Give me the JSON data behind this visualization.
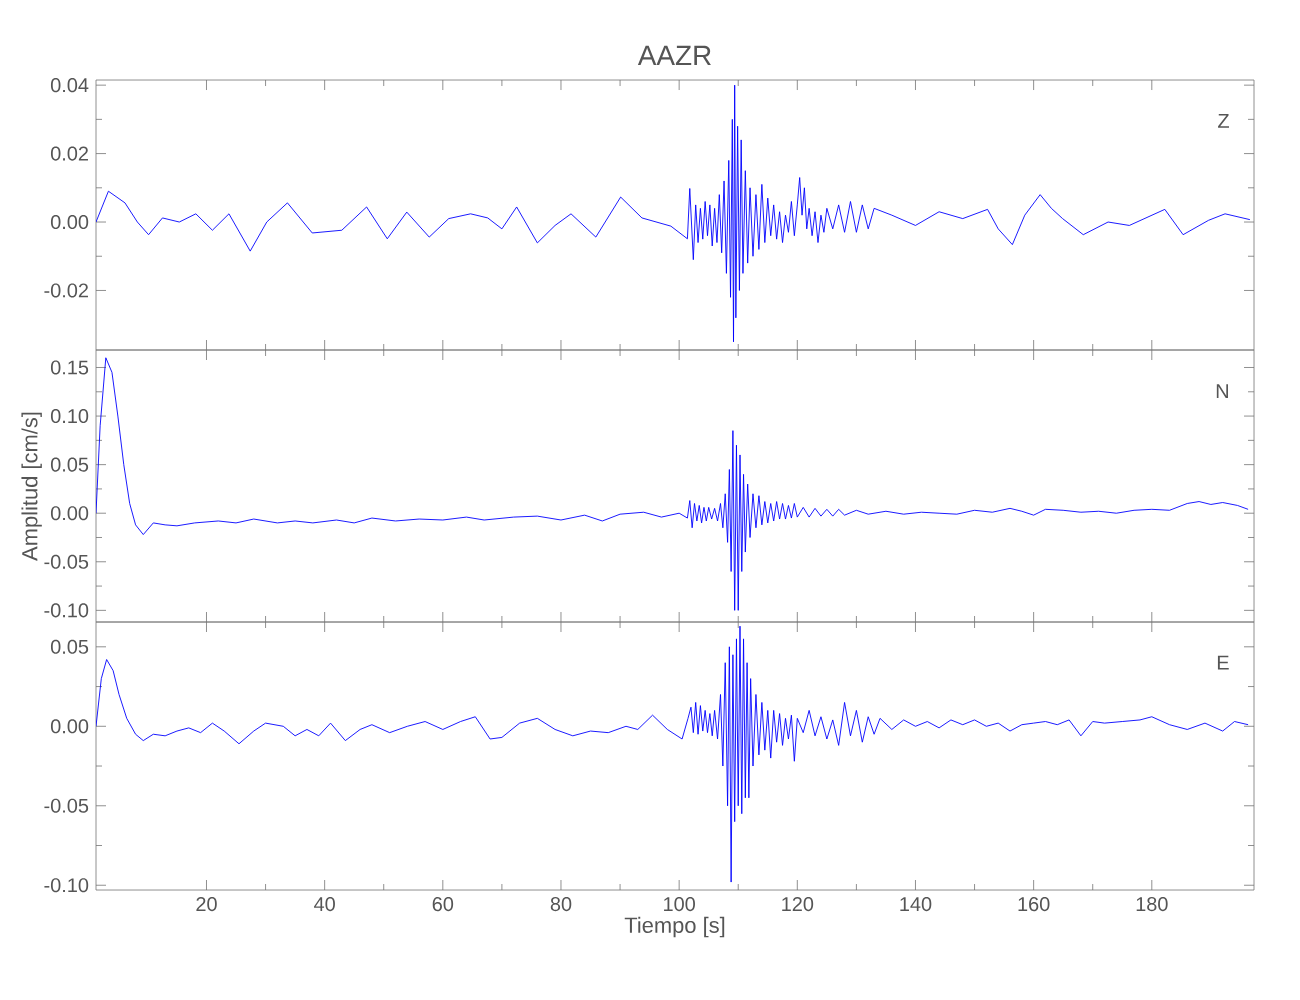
{
  "chart_data": [
    {
      "type": "line",
      "title": "AAZR",
      "annotations": [
        "Z"
      ],
      "color": "#0000ff",
      "tick_labels": "y",
      "xlim": [
        1.3,
        197.3
      ],
      "ylim": [
        -0.0374,
        0.0415
      ],
      "xticks": [
        20,
        40,
        60,
        80,
        100,
        120,
        140,
        160,
        180
      ],
      "yticks": [
        {
          "value": -0.02,
          "label": "-0.02"
        },
        {
          "value": 0,
          "label": "0.00"
        },
        {
          "value": 0.02,
          "label": "0.02"
        },
        {
          "value": 0.04,
          "label": "0.04"
        }
      ],
      "x": [
        1.3,
        3.4,
        6.2,
        8.3,
        10.2,
        12.55,
        15.4,
        18.2,
        21,
        23.8,
        27.4,
        30.2,
        33.7,
        37.9,
        42.9,
        47.1,
        50.6,
        53.9,
        57.7,
        61,
        64.7,
        67.6,
        70,
        72.5,
        76,
        79,
        81.7,
        85.9,
        90.1,
        93.7,
        98.6,
        101.4,
        101.8,
        102.4,
        102.8,
        103.2,
        103.6,
        104.0,
        104.4,
        104.8,
        105.2,
        105.6,
        106.0,
        106.4,
        106.8,
        107.2,
        107.6,
        108.0,
        108.4,
        108.7,
        109.0,
        109.2,
        109.4,
        109.6,
        109.9,
        110.2,
        110.5,
        110.8,
        111.2,
        111.6,
        112.0,
        112.5,
        113.0,
        113.5,
        114.0,
        114.5,
        115.0,
        115.5,
        116.0,
        116.5,
        117.0,
        117.5,
        118.0,
        118.5,
        119.0,
        119.5,
        120.0,
        120.4,
        120.8,
        121.2,
        121.6,
        122.0,
        122.5,
        123.0,
        123.5,
        124.0,
        124.5,
        125.0,
        126,
        127,
        128,
        129,
        130,
        131,
        132,
        133,
        136,
        140,
        144,
        148,
        152.2,
        154,
        156.4,
        158.5,
        161.1,
        163,
        164.9,
        168.4,
        172.6,
        176.2,
        182.2,
        185.3,
        189.6,
        192.4,
        196.6
      ],
      "values": [
        0,
        0.009,
        0.0056,
        0,
        -0.0037,
        0.0012,
        0,
        0.0024,
        -0.0024,
        0.0024,
        -0.0085,
        0,
        0.0056,
        -0.0032,
        -0.0024,
        0.0044,
        -0.0049,
        0.0029,
        -0.0044,
        0.001,
        0.0024,
        0.0012,
        -0.002,
        0.0044,
        -0.0061,
        -0.001,
        0.0024,
        -0.0044,
        0.0073,
        0.0012,
        -0.0012,
        -0.0049,
        0.0098,
        -0.011,
        0.005,
        -0.006,
        0.004,
        -0.005,
        0.006,
        -0.004,
        0.005,
        -0.007,
        0.004,
        -0.006,
        0.008,
        -0.009,
        0.012,
        -0.015,
        0.018,
        -0.022,
        0.03,
        -0.035,
        0.04,
        -0.028,
        0.028,
        -0.02,
        0.024,
        -0.015,
        0.015,
        -0.012,
        0.01,
        -0.01,
        0.008,
        -0.008,
        0.011,
        -0.006,
        0.007,
        -0.004,
        0.005,
        -0.005,
        0.003,
        -0.006,
        0.002,
        -0.003,
        0.006,
        -0.004,
        0.005,
        0.013,
        0.002,
        0.01,
        -0.002,
        0.004,
        -0.004,
        0.003,
        -0.006,
        0.002,
        -0.003,
        0.004,
        -0.002,
        0.005,
        -0.003,
        0.006,
        -0.003,
        0.005,
        -0.002,
        0.004,
        0.002,
        -0.001,
        0.003,
        0.001,
        0.0037,
        -0.002,
        -0.0066,
        0.002,
        0.008,
        0.004,
        0.001,
        -0.0037,
        0.0,
        -0.001,
        0.0037,
        -0.0037,
        0.0005,
        0.0024,
        0.0007
      ]
    },
    {
      "type": "line",
      "ylabel": "Amplitud [cm/s]",
      "annotations": [
        "N"
      ],
      "color": "#0000ff",
      "tick_labels": "y",
      "xlim": [
        1.3,
        197.3
      ],
      "ylim": [
        -0.112,
        0.168
      ],
      "xticks": [
        20,
        40,
        60,
        80,
        100,
        120,
        140,
        160,
        180
      ],
      "yticks": [
        {
          "value": -0.1,
          "label": "-0.10"
        },
        {
          "value": -0.05,
          "label": "-0.05"
        },
        {
          "value": 0,
          "label": "0.00"
        },
        {
          "value": 0.05,
          "label": "0.05"
        },
        {
          "value": 0.1,
          "label": "0.10"
        },
        {
          "value": 0.15,
          "label": "0.15"
        }
      ],
      "x": [
        1.3,
        2.0,
        2.96,
        4.0,
        5.0,
        6.0,
        7.0,
        8.0,
        9.3,
        11,
        13,
        15,
        18,
        22,
        25,
        28,
        32,
        35,
        38,
        42,
        45,
        48,
        52,
        56,
        60,
        64,
        67,
        72,
        76,
        80,
        84,
        87,
        90,
        94,
        97,
        100,
        101.4,
        101.8,
        102.2,
        102.6,
        103.0,
        103.4,
        103.8,
        104.2,
        104.6,
        105.0,
        105.5,
        106.0,
        106.5,
        107.0,
        107.4,
        107.8,
        108.2,
        108.5,
        108.8,
        109.1,
        109.4,
        109.7,
        110.0,
        110.3,
        110.6,
        110.9,
        111.2,
        111.6,
        112.0,
        112.5,
        113.0,
        113.5,
        114.0,
        114.5,
        115.0,
        115.5,
        116.0,
        116.5,
        117.0,
        117.5,
        118.0,
        118.5,
        119.0,
        119.5,
        120,
        121,
        122,
        123,
        124,
        125,
        126,
        127,
        128,
        130,
        132,
        135,
        138,
        141,
        144,
        147,
        150,
        153,
        156,
        158,
        160,
        162,
        165,
        168,
        171,
        174,
        177,
        180,
        183,
        186,
        188,
        190,
        192,
        194.5,
        196.3
      ],
      "values": [
        0.0,
        0.09,
        0.16,
        0.145,
        0.1,
        0.05,
        0.01,
        -0.012,
        -0.022,
        -0.01,
        -0.012,
        -0.013,
        -0.01,
        -0.008,
        -0.01,
        -0.006,
        -0.01,
        -0.008,
        -0.01,
        -0.007,
        -0.01,
        -0.005,
        -0.008,
        -0.006,
        -0.007,
        -0.004,
        -0.007,
        -0.004,
        -0.003,
        -0.007,
        -0.002,
        -0.008,
        -0.001,
        0.001,
        -0.004,
        0.0,
        -0.005,
        0.013,
        -0.015,
        0.01,
        -0.008,
        0.008,
        -0.01,
        0.006,
        -0.008,
        0.006,
        -0.006,
        0.005,
        -0.008,
        0.01,
        -0.015,
        0.02,
        -0.03,
        0.045,
        -0.06,
        0.085,
        -0.1,
        0.07,
        -0.1,
        0.06,
        -0.06,
        0.04,
        -0.04,
        0.03,
        -0.025,
        0.02,
        -0.015,
        0.018,
        -0.012,
        0.012,
        -0.01,
        0.01,
        -0.008,
        0.012,
        -0.006,
        0.01,
        -0.006,
        0.008,
        -0.005,
        0.01,
        -0.004,
        0.006,
        -0.004,
        0.005,
        -0.003,
        0.004,
        -0.003,
        0.004,
        -0.002,
        0.003,
        -0.001,
        0.002,
        -0.001,
        0.001,
        0.0,
        -0.001,
        0.003,
        0.001,
        0.005,
        0.002,
        -0.002,
        0.004,
        0.003,
        0.001,
        0.002,
        0.0,
        0.003,
        0.004,
        0.003,
        0.01,
        0.012,
        0.009,
        0.011,
        0.008,
        0.004
      ]
    },
    {
      "type": "line",
      "xlabel": "Tiempo [s]",
      "annotations": [
        "E"
      ],
      "color": "#0000ff",
      "xlim": [
        1.3,
        197.3
      ],
      "ylim": [
        -0.103,
        0.0656
      ],
      "xticks": [
        20,
        40,
        60,
        80,
        100,
        120,
        140,
        160,
        180
      ],
      "yticks": [
        {
          "value": -0.1,
          "label": "-0.10"
        },
        {
          "value": -0.05,
          "label": "-0.05"
        },
        {
          "value": 0,
          "label": "0.00"
        },
        {
          "value": 0.05,
          "label": "0.05"
        }
      ],
      "x": [
        1.3,
        2.2,
        3.1,
        4.2,
        5.2,
        6.5,
        8.0,
        9.3,
        11,
        13,
        15,
        17,
        19,
        21,
        23,
        25.5,
        28,
        30,
        33,
        35,
        37,
        39,
        41,
        43.5,
        46,
        48,
        51,
        54,
        57,
        60,
        63,
        65.5,
        68,
        70,
        73,
        76,
        79,
        82,
        85,
        88,
        91,
        93,
        95.5,
        98,
        100.5,
        101.5,
        102,
        102.4,
        102.8,
        103.2,
        103.6,
        104.0,
        104.4,
        104.8,
        105.2,
        105.6,
        106,
        106.5,
        107,
        107.4,
        107.8,
        108.2,
        108.5,
        108.8,
        109.1,
        109.4,
        109.7,
        110.0,
        110.3,
        110.6,
        110.9,
        111.2,
        111.5,
        111.8,
        112.1,
        112.5,
        113.0,
        113.5,
        114.0,
        114.5,
        115.0,
        115.5,
        116,
        116.5,
        117,
        117.5,
        118,
        118.5,
        119,
        119.5,
        120,
        121,
        122,
        123,
        124,
        125,
        126,
        127,
        128,
        129,
        130,
        131,
        132,
        133,
        134,
        136,
        138,
        140,
        142,
        144,
        146,
        148,
        150,
        152,
        154,
        156,
        158,
        160,
        162,
        164,
        166,
        168,
        170,
        172,
        175,
        178,
        180,
        183,
        186,
        189,
        192,
        194,
        196.3
      ],
      "values": [
        0.0,
        0.03,
        0.042,
        0.035,
        0.02,
        0.005,
        -0.005,
        -0.009,
        -0.005,
        -0.006,
        -0.003,
        -0.001,
        -0.004,
        0.002,
        -0.003,
        -0.011,
        -0.003,
        0.002,
        0.0,
        -0.006,
        -0.002,
        -0.006,
        0.002,
        -0.009,
        -0.002,
        0.001,
        -0.004,
        0.0,
        0.003,
        -0.002,
        0.003,
        0.006,
        -0.008,
        -0.007,
        0.002,
        0.005,
        -0.002,
        -0.006,
        -0.003,
        -0.004,
        0.0,
        -0.002,
        0.007,
        -0.002,
        -0.008,
        0.005,
        0.012,
        -0.004,
        0.015,
        -0.005,
        0.013,
        -0.003,
        0.01,
        -0.004,
        0.008,
        -0.006,
        0.01,
        -0.008,
        0.02,
        -0.025,
        0.04,
        -0.05,
        0.05,
        -0.098,
        0.045,
        -0.06,
        0.055,
        -0.05,
        0.063,
        -0.055,
        0.055,
        -0.045,
        0.04,
        -0.045,
        0.03,
        -0.025,
        0.02,
        -0.018,
        0.015,
        -0.015,
        0.01,
        -0.02,
        0.01,
        -0.01,
        0.008,
        -0.012,
        0.005,
        -0.008,
        0.007,
        -0.022,
        0.005,
        -0.004,
        0.01,
        -0.006,
        0.006,
        -0.008,
        0.004,
        -0.012,
        0.015,
        -0.006,
        0.01,
        -0.01,
        0.006,
        -0.005,
        0.005,
        -0.002,
        0.004,
        0.0,
        0.003,
        -0.001,
        0.004,
        0.001,
        0.004,
        0.0,
        0.002,
        -0.003,
        0.001,
        0.002,
        0.003,
        0.001,
        0.004,
        -0.006,
        0.003,
        0.002,
        0.003,
        0.004,
        0.006,
        0.001,
        -0.002,
        0.002,
        -0.003,
        0.003,
        0.001
      ]
    }
  ]
}
